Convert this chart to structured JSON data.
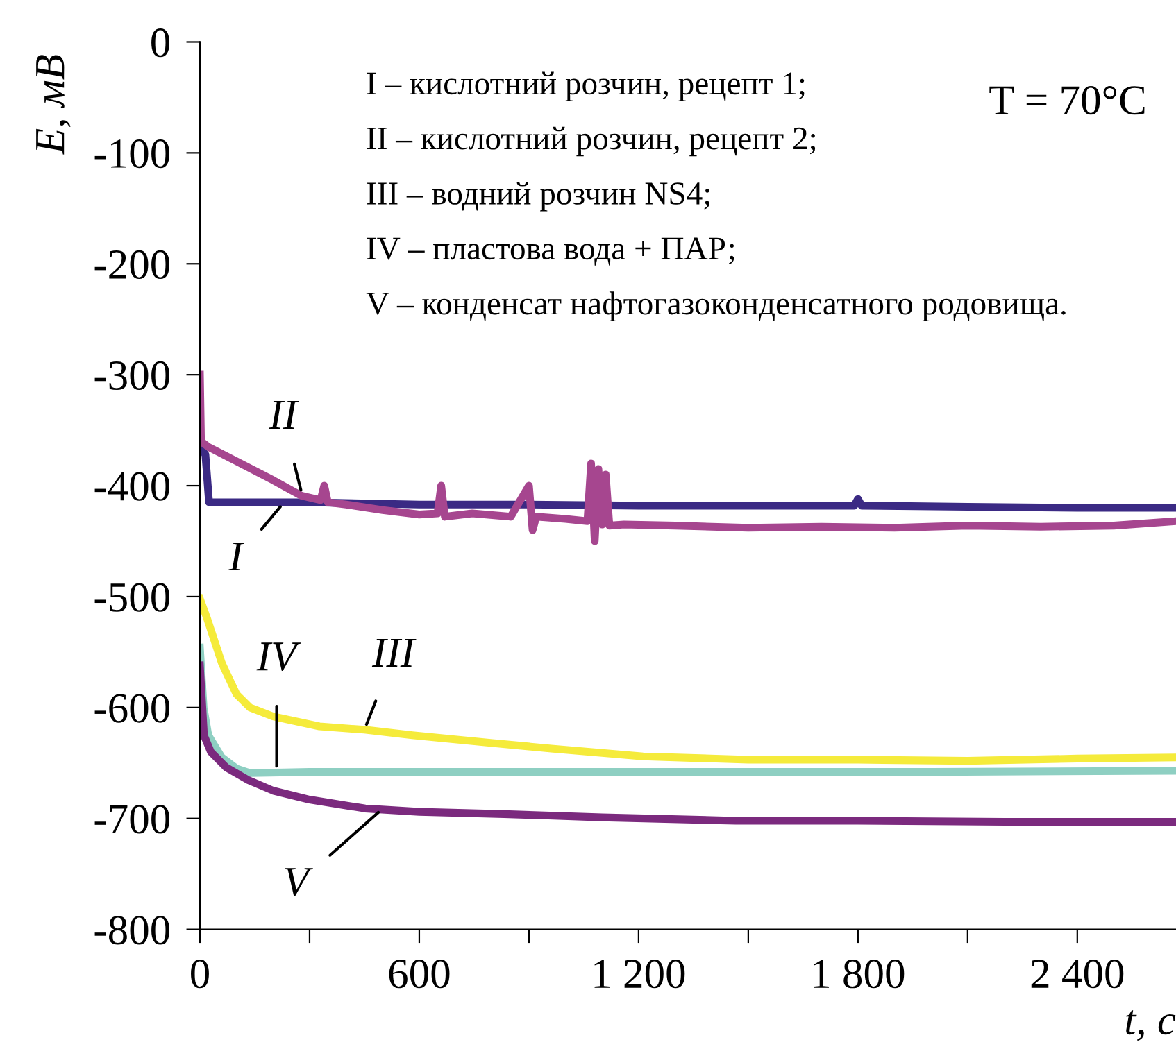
{
  "chart_data": {
    "type": "line",
    "xlabel": "t, с",
    "ylabel": "E, мВ",
    "xlim": [
      0,
      2670
    ],
    "ylim": [
      -800,
      0
    ],
    "xticks": [
      0,
      {
        "value": 300,
        "label": null
      },
      600,
      {
        "value": 900,
        "label": null
      },
      {
        "value": 1200,
        "label": "1 200"
      },
      {
        "value": 1500,
        "label": null
      },
      {
        "value": 1800,
        "label": "1 800"
      },
      {
        "value": 2100,
        "label": null
      },
      {
        "value": 2400,
        "label": "2 400"
      }
    ],
    "yticks": [
      0,
      -100,
      -200,
      -300,
      -400,
      -500,
      -600,
      -700,
      -800
    ],
    "grid": false,
    "legend": false,
    "marker": "none",
    "line_style": "solid",
    "series": [
      {
        "color": "#3b2a84",
        "x": [
          0,
          15,
          25,
          300,
          600,
          900,
          1200,
          1500,
          1790,
          1800,
          1810,
          2100,
          2400,
          2670
        ],
        "values": [
          -365,
          -372,
          -415,
          -415,
          -417,
          -417,
          -418,
          -418,
          -418,
          -412,
          -418,
          -419,
          -420,
          -420
        ]
      },
      {
        "color": "#a6468f",
        "x": [
          0,
          3,
          23,
          100,
          200,
          277,
          330,
          340,
          350,
          400,
          500,
          600,
          650,
          660,
          670,
          745,
          850,
          900,
          910,
          920,
          1000,
          1060,
          1070,
          1080,
          1090,
          1100,
          1110,
          1120,
          1160,
          1300,
          1500,
          1700,
          1900,
          2100,
          2300,
          2500,
          2670
        ],
        "values": [
          -300,
          -360,
          -365,
          -378,
          -395,
          -409,
          -413,
          -400,
          -415,
          -417,
          -422,
          -426,
          -425,
          -400,
          -428,
          -425,
          -428,
          -400,
          -440,
          -428,
          -430,
          -432,
          -380,
          -450,
          -385,
          -435,
          -390,
          -436,
          -435,
          -436,
          -438,
          -437,
          -438,
          -436,
          -437,
          -436,
          -432
        ]
      },
      {
        "color": "#f5eb3b",
        "x": [
          0,
          20,
          60,
          100,
          137,
          200,
          327,
          450,
          581,
          800,
          961,
          1212,
          1500,
          1800,
          2100,
          2400,
          2670
        ],
        "values": [
          -502,
          -520,
          -560,
          -588,
          -600,
          -608,
          -617,
          -620,
          -625,
          -632,
          -637,
          -644,
          -647,
          -647,
          -648,
          -646,
          -645
        ]
      },
      {
        "color": "#8ecfc2",
        "x": [
          0,
          10,
          23,
          60,
          100,
          137,
          300,
          600,
          1000,
          1500,
          2000,
          2670
        ],
        "values": [
          -546,
          -600,
          -625,
          -645,
          -655,
          -659,
          -658,
          -658,
          -658,
          -658,
          -658,
          -657
        ]
      },
      {
        "color": "#7b2a7e",
        "x": [
          0,
          11,
          30,
          72,
          130,
          201,
          300,
          452,
          600,
          832,
          1100,
          1466,
          1800,
          2200,
          2670
        ],
        "values": [
          -562,
          -625,
          -640,
          -654,
          -665,
          -675,
          -683,
          -691,
          -694,
          -696,
          -699,
          -702,
          -702,
          -703,
          -703
        ]
      }
    ],
    "annotations": [
      {
        "text": "I",
        "x": 230,
        "y": -415
      },
      {
        "text": "II",
        "x": 280,
        "y": -409
      },
      {
        "text": "III",
        "x": 450,
        "y": -620
      },
      {
        "text": "IV",
        "x": 210,
        "y": -658
      },
      {
        "text": "V",
        "x": 500,
        "y": -691
      },
      "I – кислотний розчин, рецепт 1;",
      "II – кислотний розчин, рецепт 2;",
      "III – водний розчин NS4;",
      "IV – пластова вода + ПАР;",
      "V – конденсат нафтогазоконденсатного родовища.",
      "T = 70°C"
    ]
  }
}
